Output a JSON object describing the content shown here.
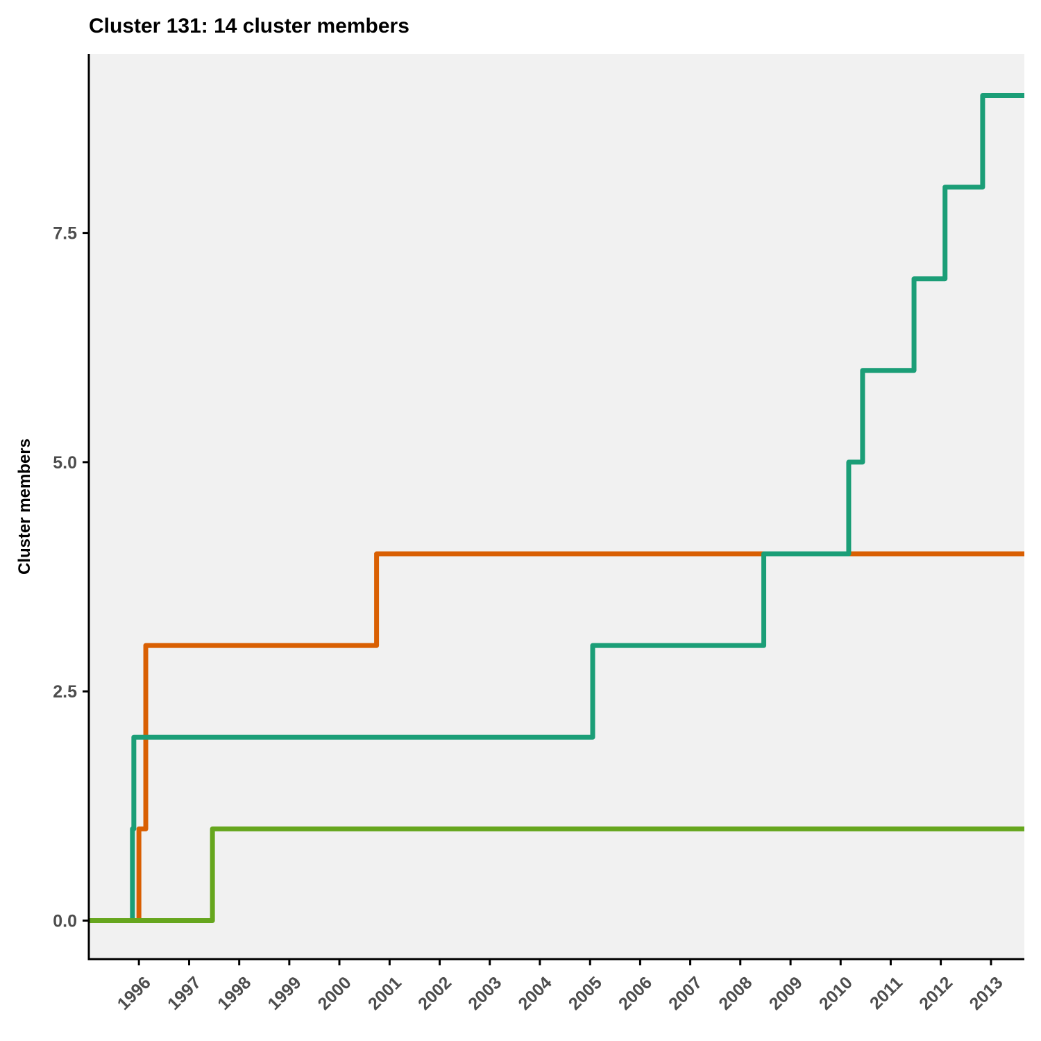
{
  "chart_data": {
    "type": "line",
    "step": true,
    "title": "Cluster 131: 14 cluster members",
    "xlabel": "",
    "ylabel": "Cluster members",
    "xlim": [
      "1995-01-01",
      "2013-09-01"
    ],
    "ylim": [
      -0.42,
      9.45
    ],
    "x_ticks": [
      "1996",
      "1997",
      "1998",
      "1999",
      "2000",
      "2001",
      "2002",
      "2003",
      "2004",
      "2005",
      "2006",
      "2007",
      "2008",
      "2009",
      "2010",
      "2011",
      "2012",
      "2013"
    ],
    "y_ticks": [
      "0.0",
      "2.5",
      "5.0",
      "7.5"
    ],
    "y_tick_values": [
      0,
      2.5,
      5,
      7.5
    ],
    "panel_background": "#f1f1f1",
    "grid": false,
    "legend": "none",
    "series": [
      {
        "color": "#d95f02",
        "points": [
          [
            "1995-01-01",
            0
          ],
          [
            "1996-01-01",
            1
          ],
          [
            "1996-02-20",
            3
          ],
          [
            "2000-09-28",
            4
          ],
          [
            "2013-09-01",
            4
          ]
        ]
      },
      {
        "color": "#1b9e77",
        "points": [
          [
            "1995-01-01",
            0
          ],
          [
            "1995-11-15",
            1
          ],
          [
            "1995-11-25",
            2
          ],
          [
            "2005-01-20",
            3
          ],
          [
            "2008-06-20",
            4
          ],
          [
            "2010-03-01",
            5
          ],
          [
            "2010-06-10",
            6
          ],
          [
            "2011-06-20",
            7
          ],
          [
            "2012-02-01",
            8
          ],
          [
            "2012-11-01",
            9
          ],
          [
            "2013-09-01",
            9
          ]
        ]
      },
      {
        "color": "#66a61e",
        "points": [
          [
            "1995-01-01",
            0
          ],
          [
            "1997-06-20",
            1
          ],
          [
            "2013-09-01",
            1
          ]
        ]
      }
    ]
  }
}
